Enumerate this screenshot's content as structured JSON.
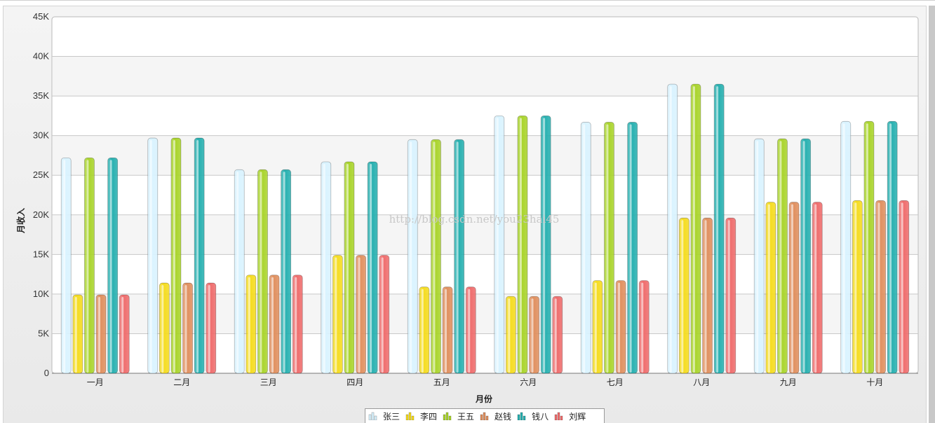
{
  "chart_data": {
    "type": "bar",
    "title": "",
    "xlabel": "月份",
    "ylabel": "月收入",
    "ylim": [
      0,
      45000
    ],
    "yticks": [
      "0",
      "5K",
      "10K",
      "15K",
      "20K",
      "25K",
      "30K",
      "35K",
      "40K",
      "45K"
    ],
    "categories": [
      "一月",
      "二月",
      "三月",
      "四月",
      "五月",
      "六月",
      "七月",
      "八月",
      "九月",
      "十月"
    ],
    "legend_position": "bottom-center",
    "grid": true,
    "series": [
      {
        "name": "张三",
        "color": "#d9f3ff",
        "values": [
          27200,
          29700,
          25700,
          26700,
          29500,
          32500,
          31700,
          36500,
          29600,
          31800
        ]
      },
      {
        "name": "李四",
        "color": "#f5dc1e",
        "values": [
          9900,
          11400,
          12400,
          14900,
          10900,
          9700,
          11700,
          19600,
          21600,
          21800
        ]
      },
      {
        "name": "王五",
        "color": "#a9d42a",
        "values": [
          27200,
          29700,
          25700,
          26700,
          29500,
          32500,
          31700,
          36500,
          29600,
          31800
        ]
      },
      {
        "name": "赵钱",
        "color": "#e08f5e",
        "values": [
          9900,
          11400,
          12400,
          14900,
          10900,
          9700,
          11700,
          19600,
          21600,
          21800
        ]
      },
      {
        "name": "钱八",
        "color": "#26b0b0",
        "values": [
          27200,
          29700,
          25700,
          26700,
          29500,
          32500,
          31700,
          36500,
          29600,
          31800
        ]
      },
      {
        "name": "刘辉",
        "color": "#ef6c6c",
        "values": [
          9900,
          11400,
          12400,
          14900,
          10900,
          9700,
          11700,
          19600,
          21600,
          21800
        ]
      }
    ]
  },
  "watermark": "http://blog.csdn.net/you23hai45"
}
